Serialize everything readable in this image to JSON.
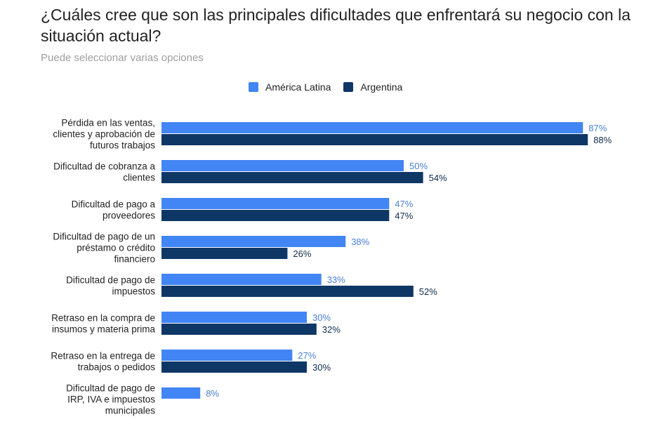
{
  "chart_data": {
    "type": "bar",
    "orientation": "horizontal",
    "title": "¿Cuáles cree que son las principales dificultades que enfrentará su negocio con la situación actual?",
    "subtitle": "Puede seleccionar varias opciones",
    "legend_position": "top-center",
    "grid": false,
    "xlim": [
      0,
      100
    ],
    "categories": [
      [
        "Pérdida en las ventas,",
        "clientes y aprobación de",
        "futuros trabajos"
      ],
      [
        "Dificultad de cobranza a",
        "clientes"
      ],
      [
        "Dificultad de pago a",
        "proveedores"
      ],
      [
        "Dificultad de pago de un",
        "préstamo o crédito",
        "financiero"
      ],
      [
        "Dificultad de pago de",
        "impuestos"
      ],
      [
        "Retraso en la compra de",
        "insumos y materia prima"
      ],
      [
        "Retraso en la entrega de",
        "trabajos o pedidos"
      ],
      [
        "Dificultad de pago de",
        "IRP, IVA e impuestos",
        "municipales"
      ]
    ],
    "series": [
      {
        "name": "América Latina",
        "color": "#4285f4",
        "values": [
          87,
          50,
          47,
          38,
          33,
          30,
          27,
          8
        ],
        "labels": [
          "87%",
          "50%",
          "47%",
          "38%",
          "33%",
          "30%",
          "27%",
          "8%"
        ]
      },
      {
        "name": "Argentina",
        "color": "#0f3766",
        "values": [
          88,
          54,
          47,
          26,
          52,
          32,
          30,
          null
        ],
        "labels": [
          "88%",
          "54%",
          "47%",
          "26%",
          "52%",
          "32%",
          "30%",
          ""
        ]
      }
    ]
  }
}
